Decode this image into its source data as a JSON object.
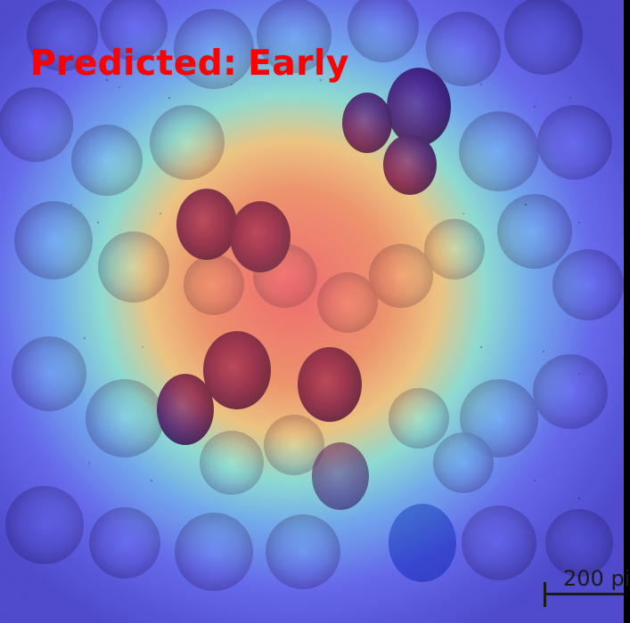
{
  "overlay": {
    "prediction_label": "Predicted:",
    "prediction_value": "Early",
    "text_color": "#ff0000"
  },
  "scale_bar": {
    "text": "200 pi"
  },
  "colors": {
    "heatmap_low": "#3b4cff",
    "heatmap_mid": "#59ffd1",
    "heatmap_high": "#ff2a2a",
    "cell_purple": "#8a2a8c",
    "cell_red": "#d33a3a"
  }
}
